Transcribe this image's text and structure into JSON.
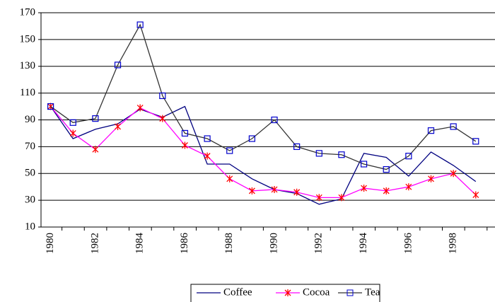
{
  "chart_data": {
    "type": "line",
    "x": [
      1980,
      1981,
      1982,
      1983,
      1984,
      1985,
      1986,
      1987,
      1988,
      1989,
      1990,
      1991,
      1992,
      1993,
      1994,
      1995,
      1996,
      1997,
      1998,
      1999
    ],
    "series": [
      {
        "name": "Coffee",
        "color": "#000080",
        "marker": "none",
        "values": [
          100,
          76,
          83,
          87,
          98,
          92,
          100,
          57,
          57,
          46,
          38,
          35,
          27,
          31,
          65,
          62,
          48,
          66,
          56,
          44
        ]
      },
      {
        "name": "Cocoa",
        "color": "#ff00ff",
        "marker": "asterisk",
        "marker_color": "#ff0000",
        "values": [
          100,
          80,
          68,
          85,
          99,
          91,
          71,
          63,
          46,
          37,
          38,
          36,
          32,
          32,
          39,
          37,
          40,
          46,
          50,
          34
        ]
      },
      {
        "name": "Tea",
        "color": "#333333",
        "marker": "square",
        "marker_color": "#0000cc",
        "values": [
          100,
          88,
          91,
          131,
          161,
          108,
          80,
          76,
          67,
          76,
          90,
          70,
          65,
          64,
          57,
          53,
          63,
          82,
          85,
          74
        ]
      }
    ],
    "xlim": [
      1979.57,
      1999.86
    ],
    "xticks": [
      1980,
      1982,
      1984,
      1986,
      1988,
      1990,
      1992,
      1994,
      1996,
      1998
    ],
    "ylim": [
      10,
      170
    ],
    "yticks": [
      10,
      30,
      50,
      70,
      90,
      110,
      130,
      150,
      170
    ],
    "grid": true,
    "legend": "bottom"
  }
}
